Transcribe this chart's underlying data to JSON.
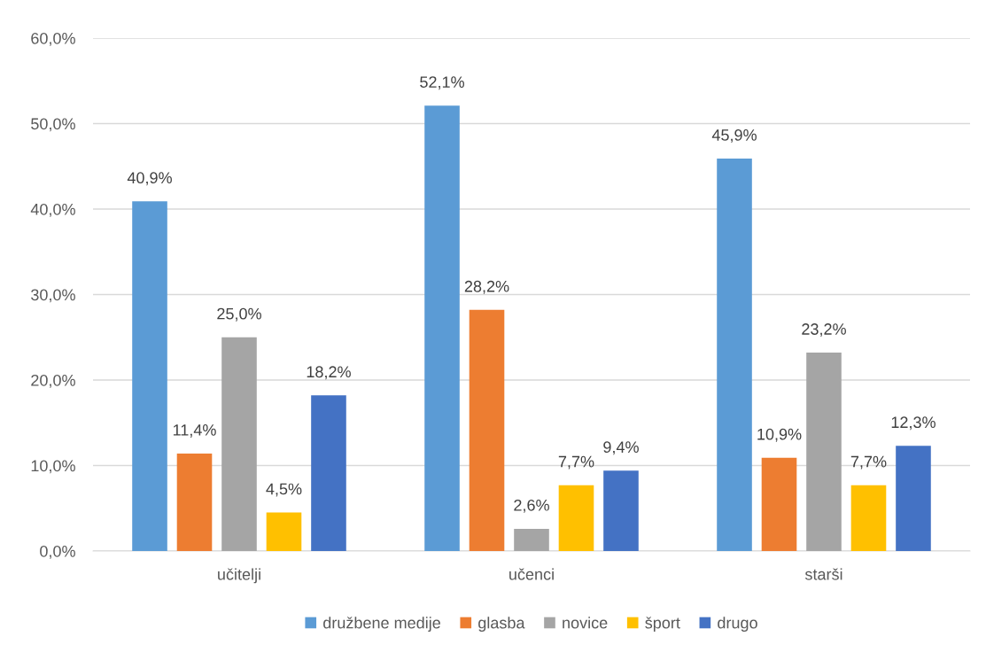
{
  "chart_data": {
    "type": "bar",
    "categories": [
      "učitelji",
      "učenci",
      "starši"
    ],
    "series": [
      {
        "name": "družbene medije",
        "color": "#5b9bd5",
        "values": [
          40.9,
          52.1,
          45.9
        ],
        "value_labels": [
          "40,9%",
          "52,1%",
          "45,9%"
        ]
      },
      {
        "name": "glasba",
        "color": "#ed7d31",
        "values": [
          11.4,
          28.2,
          10.9
        ],
        "value_labels": [
          "11,4%",
          "28,2%",
          "10,9%"
        ]
      },
      {
        "name": "novice",
        "color": "#a5a5a5",
        "values": [
          25.0,
          2.6,
          23.2
        ],
        "value_labels": [
          "25,0%",
          "2,6%",
          "23,2%"
        ]
      },
      {
        "name": "šport",
        "color": "#ffc000",
        "values": [
          4.5,
          7.7,
          7.7
        ],
        "value_labels": [
          "4,5%",
          "7,7%",
          "7,7%"
        ]
      },
      {
        "name": "drugo",
        "color": "#4472c4",
        "values": [
          18.2,
          9.4,
          12.3
        ],
        "value_labels": [
          "18,2%",
          "9,4%",
          "12,3%"
        ]
      }
    ],
    "ylim": [
      0,
      60
    ],
    "yticks": [
      {
        "value": 0,
        "label": "0,0%"
      },
      {
        "value": 10,
        "label": "10,0%"
      },
      {
        "value": 20,
        "label": "20,0%"
      },
      {
        "value": 30,
        "label": "30,0%"
      },
      {
        "value": 40,
        "label": "40,0%"
      },
      {
        "value": 50,
        "label": "50,0%"
      },
      {
        "value": 60,
        "label": "60,0%"
      }
    ],
    "grid": "y",
    "legend": "bottom"
  }
}
